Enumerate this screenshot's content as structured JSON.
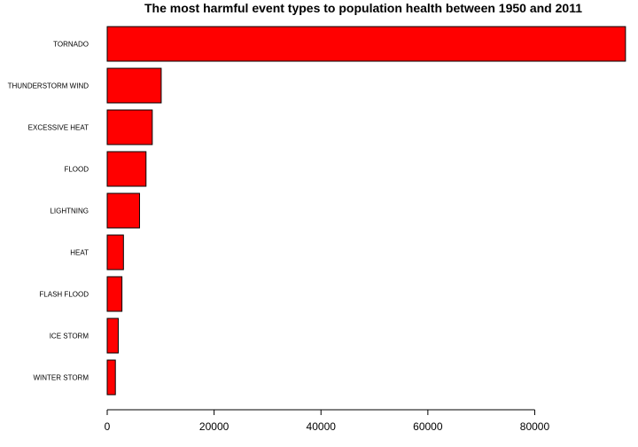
{
  "chart_data": {
    "type": "bar",
    "orientation": "horizontal",
    "title": "The most harmful event types to population health between 1950 and 2011",
    "xlabel": "",
    "ylabel": "",
    "categories": [
      "TORNADO",
      "THUNDERSTORM WIND",
      "EXCESSIVE HEAT",
      "FLOOD",
      "LIGHTNING",
      "HEAT",
      "FLASH FLOOD",
      "ICE STORM",
      "WINTER STORM"
    ],
    "values": [
      96979,
      10100,
      8428,
      7259,
      6046,
      3037,
      2755,
      2064,
      1527
    ],
    "xlim": [
      0,
      97000
    ],
    "x_ticks": [
      0,
      20000,
      40000,
      60000,
      80000
    ],
    "x_tick_labels": [
      "0",
      "20000",
      "40000",
      "60000",
      "80000"
    ],
    "grid": false,
    "legend": "none",
    "bar_color": "#ff0000",
    "bar_border_color": "#000000"
  }
}
